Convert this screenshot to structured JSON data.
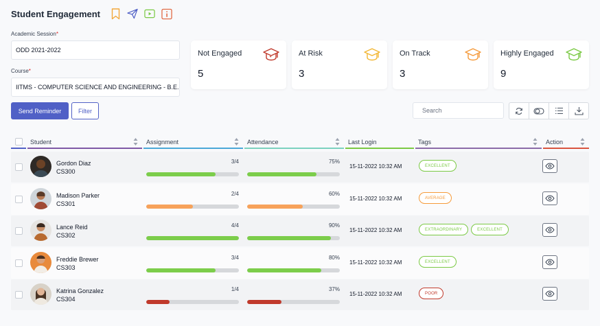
{
  "page": {
    "title": "Student Engagement"
  },
  "filters": {
    "session_label": "Academic Session",
    "session_value": "ODD 2021-2022",
    "course_label": "Course",
    "course_value": "IITMS - COMPUTER SCIENCE AND ENGINEERING - B.E.",
    "required_mark": "*"
  },
  "stats": [
    {
      "label": "Not Engaged",
      "value": "5",
      "color": "#c0392b"
    },
    {
      "label": "At Risk",
      "value": "3",
      "color": "#f2b632"
    },
    {
      "label": "On Track",
      "value": "3",
      "color": "#f59a3a"
    },
    {
      "label": "Highly Engaged",
      "value": "9",
      "color": "#7ac943"
    }
  ],
  "actions": {
    "send_reminder": "Send Reminder",
    "filter": "Filter"
  },
  "search": {
    "placeholder": "Search"
  },
  "table": {
    "columns": [
      "Student",
      "Assignment",
      "Attendance",
      "Last Login",
      "Tags",
      "Action"
    ],
    "rows": [
      {
        "name": "Gordon Diaz",
        "id": "CS300",
        "assignment": "3/4",
        "assignment_pct": 0.75,
        "assignment_color": "#7ccd4b",
        "attendance": "75%",
        "attendance_pct": 0.75,
        "attendance_color": "#7ccd4b",
        "last_login": "15-11-2022 10:32 AM",
        "tags": [
          {
            "label": "EXCELLENT",
            "color": "#7ac943"
          }
        ]
      },
      {
        "name": "Madison Parker",
        "id": "CS301",
        "assignment": "2/4",
        "assignment_pct": 0.5,
        "assignment_color": "#f7a25a",
        "attendance": "60%",
        "attendance_pct": 0.6,
        "attendance_color": "#f7a25a",
        "last_login": "15-11-2022 10:32 AM",
        "tags": [
          {
            "label": "AVERAGE",
            "color": "#f59a3a"
          }
        ]
      },
      {
        "name": "Lance Reid",
        "id": "CS302",
        "assignment": "4/4",
        "assignment_pct": 1.0,
        "assignment_color": "#7ccd4b",
        "attendance": "90%",
        "attendance_pct": 0.9,
        "attendance_color": "#7ccd4b",
        "last_login": "15-11-2022 10:32 AM",
        "tags": [
          {
            "label": "EXTRAORDINARY",
            "color": "#7ac943"
          },
          {
            "label": "EXCELLENT",
            "color": "#7ac943"
          }
        ]
      },
      {
        "name": "Freddie Brewer",
        "id": "CS303",
        "assignment": "3/4",
        "assignment_pct": 0.75,
        "assignment_color": "#7ccd4b",
        "attendance": "80%",
        "attendance_pct": 0.8,
        "attendance_color": "#7ccd4b",
        "last_login": "15-11-2022 10:32 AM",
        "tags": [
          {
            "label": "EXCELLENT",
            "color": "#7ac943"
          }
        ]
      },
      {
        "name": "Katrina Gonzalez",
        "id": "CS304",
        "assignment": "1/4",
        "assignment_pct": 0.25,
        "assignment_color": "#c0392b",
        "attendance": "37%",
        "attendance_pct": 0.37,
        "attendance_color": "#c0392b",
        "last_login": "15-11-2022 10:32 AM",
        "tags": [
          {
            "label": "POOR",
            "color": "#c0392b"
          }
        ]
      }
    ]
  },
  "icons": {
    "header": [
      "bookmark-icon",
      "send-icon",
      "play-icon",
      "info-icon"
    ],
    "stat": "graduation-cap-icon",
    "toolbar": [
      "refresh-icon",
      "toggle-icon",
      "list-icon",
      "download-icon"
    ],
    "row_action": "eye-icon"
  }
}
